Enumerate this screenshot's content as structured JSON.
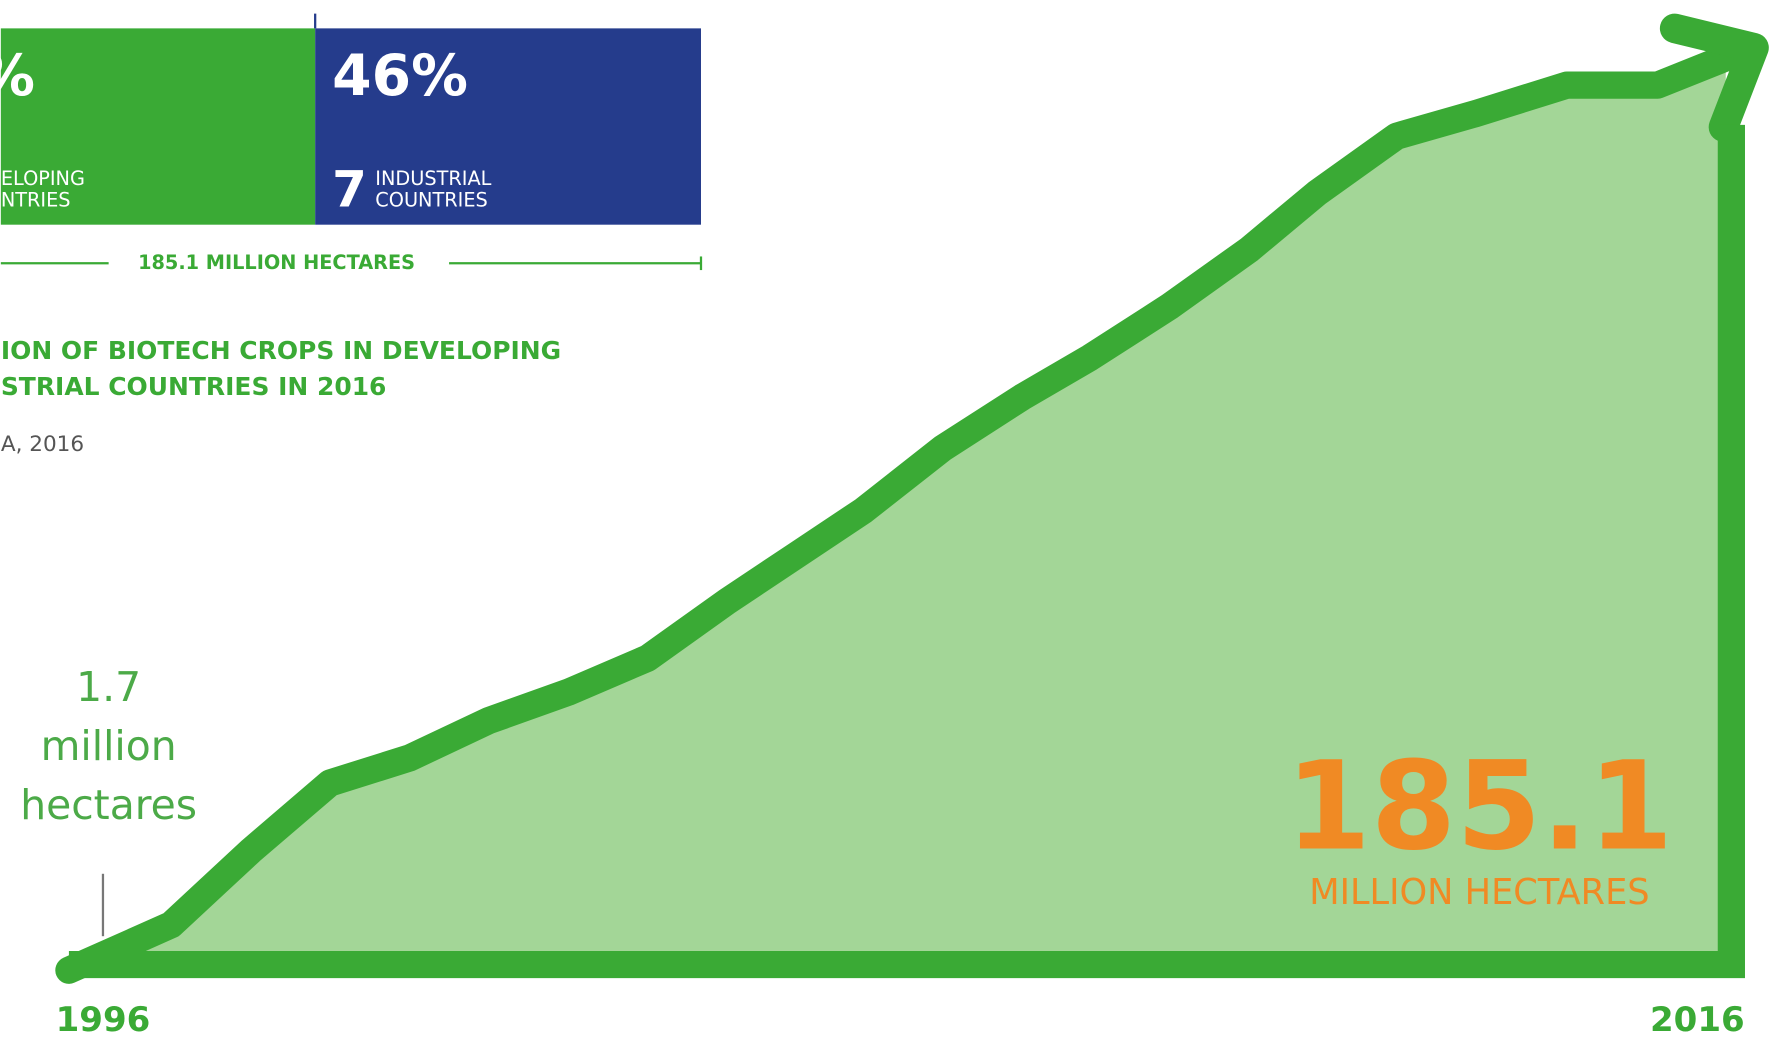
{
  "share_bar": {
    "developing": {
      "percent": "%",
      "line1": "ELOPING",
      "line2": "NTRIES"
    },
    "industrial": {
      "percent": "46%",
      "count": "7",
      "line1": "INDUSTRIAL",
      "line2": "COUNTRIES"
    },
    "total": "185.1 MILLION HECTARES"
  },
  "caption": {
    "title_line1": "ION OF BIOTECH CROPS IN DEVELOPING",
    "title_line2": "STRIAL COUNTRIES IN 2016",
    "source": "A, 2016"
  },
  "growth": {
    "start_value": "1.7",
    "start_unit_line1": "million",
    "start_unit_line2": "hectares",
    "end_value": "185.1",
    "end_unit": "MILLION HECTARES",
    "start_year": "1996",
    "end_year": "2016"
  }
}
